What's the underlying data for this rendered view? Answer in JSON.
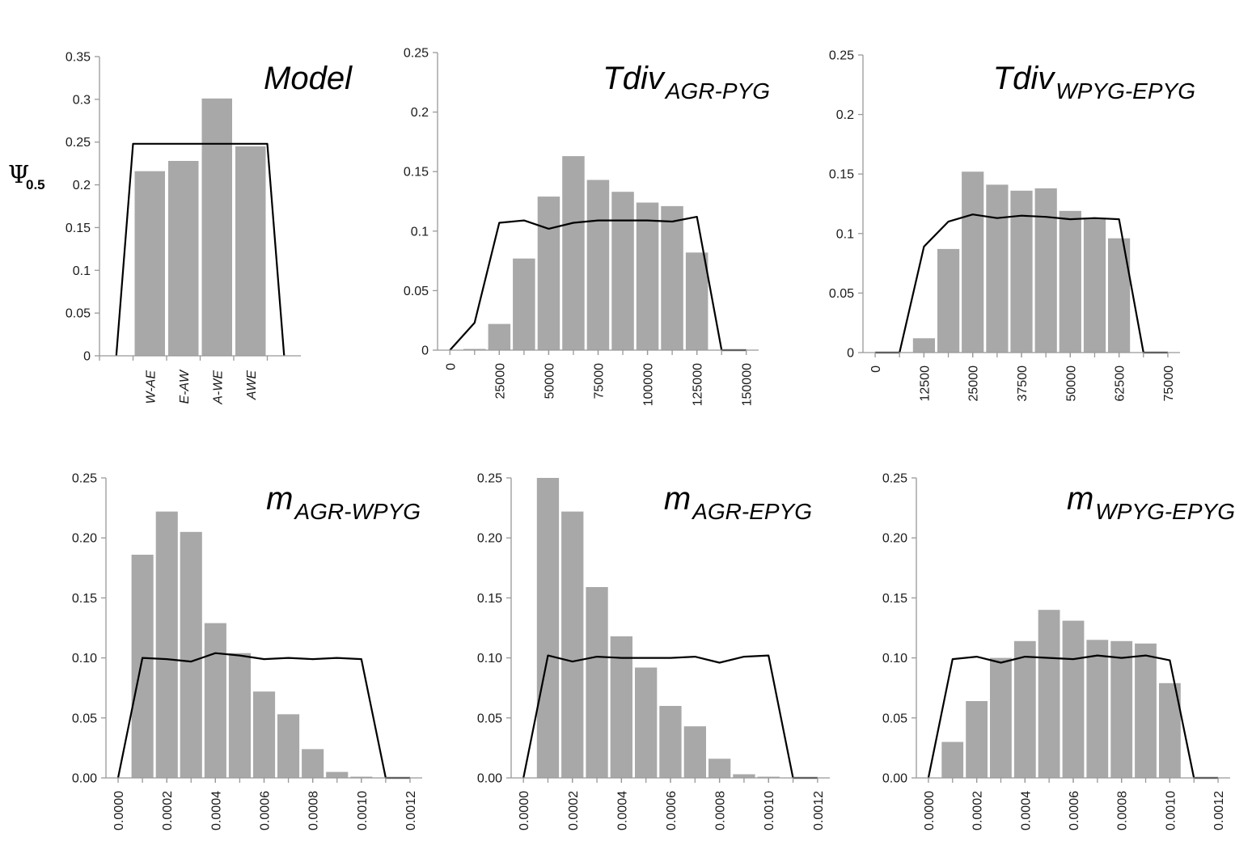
{
  "y_axis_label": {
    "symbol": "Ψ",
    "subscript": "0.5"
  },
  "chart_data": [
    {
      "type": "bar",
      "title": "Model",
      "title_sub": "",
      "categories": [
        "W-AE",
        "E-AW",
        "A-WE",
        "AWE"
      ],
      "bars": [
        0.216,
        0.228,
        0.301,
        0.245
      ],
      "line": {
        "x": [
          -1,
          4
        ],
        "y": [
          0,
          0
        ]
      },
      "line_points": [
        [
          -1,
          0
        ],
        [
          -0.5,
          0.248
        ],
        [
          3.5,
          0.248
        ],
        [
          4,
          0
        ]
      ],
      "ylim": [
        0,
        0.35
      ],
      "yticks": [
        0,
        0.05,
        0.1,
        0.15,
        0.2,
        0.25,
        0.3,
        0.35
      ],
      "ytick_labels": [
        "0",
        "0.05",
        "0.1",
        "0.15",
        "0.2",
        "0.25",
        "0.3",
        "0.35"
      ],
      "xlabel": "",
      "ylabel": "",
      "grid": false
    },
    {
      "type": "bar",
      "title": "Tdiv",
      "title_sub": "AGR-PYG",
      "bin_width": 12500,
      "bar_centers": [
        12500,
        25000,
        37500,
        50000,
        62500,
        75000,
        87500,
        100000,
        112500,
        125000,
        137500,
        150000
      ],
      "bars": [
        0.001,
        0.022,
        0.077,
        0.129,
        0.163,
        0.143,
        0.133,
        0.124,
        0.121,
        0.082,
        0,
        0
      ],
      "line_points": [
        [
          0,
          0
        ],
        [
          12500,
          0.023
        ],
        [
          25000,
          0.107
        ],
        [
          37500,
          0.109
        ],
        [
          50000,
          0.102
        ],
        [
          62500,
          0.107
        ],
        [
          75000,
          0.109
        ],
        [
          87500,
          0.109
        ],
        [
          100000,
          0.109
        ],
        [
          112500,
          0.108
        ],
        [
          125000,
          0.112
        ],
        [
          137500,
          0
        ],
        [
          150000,
          0
        ]
      ],
      "xlim": [
        -6250,
        156250
      ],
      "xticks": [
        0,
        25000,
        50000,
        75000,
        100000,
        125000,
        150000
      ],
      "xtick_labels": [
        "0",
        "25000",
        "50000",
        "75000",
        "100000",
        "125000",
        "150000"
      ],
      "ylim": [
        0,
        0.25
      ],
      "yticks": [
        0,
        0.05,
        0.1,
        0.15,
        0.2,
        0.25
      ],
      "ytick_labels": [
        "0",
        "0.05",
        "0.1",
        "0.15",
        "0.2",
        "0.25"
      ],
      "xlabel": "",
      "ylabel": "",
      "grid": false
    },
    {
      "type": "bar",
      "title": "Tdiv",
      "title_sub": "WPYG-EPYG",
      "bin_width": 6250,
      "bar_centers": [
        12500,
        18750,
        25000,
        31250,
        37500,
        43750,
        50000,
        56250,
        62500
      ],
      "bars": [
        0.012,
        0.087,
        0.152,
        0.141,
        0.136,
        0.138,
        0.119,
        0.113,
        0.096
      ],
      "line_points": [
        [
          0,
          0
        ],
        [
          6250,
          0
        ],
        [
          12500,
          0.089
        ],
        [
          18750,
          0.11
        ],
        [
          25000,
          0.116
        ],
        [
          31250,
          0.113
        ],
        [
          37500,
          0.115
        ],
        [
          43750,
          0.114
        ],
        [
          50000,
          0.112
        ],
        [
          56250,
          0.113
        ],
        [
          62500,
          0.112
        ],
        [
          68750,
          0
        ],
        [
          75000,
          0
        ]
      ],
      "xlim": [
        -3125,
        78125
      ],
      "xticks": [
        0,
        12500,
        25000,
        37500,
        50000,
        62500,
        75000
      ],
      "xtick_labels": [
        "0",
        "12500",
        "25000",
        "37500",
        "50000",
        "62500",
        "75000"
      ],
      "ylim": [
        0,
        0.25
      ],
      "yticks": [
        0,
        0.05,
        0.1,
        0.15,
        0.2,
        0.25
      ],
      "ytick_labels": [
        "0",
        "0.05",
        "0.1",
        "0.15",
        "0.2",
        "0.25"
      ],
      "xlabel": "",
      "ylabel": "",
      "grid": false
    },
    {
      "type": "bar",
      "title": "m",
      "title_sub": "AGR-WPYG",
      "bin_width": 0.0001,
      "bar_centers": [
        0.0001,
        0.0002,
        0.0003,
        0.0004,
        0.0005,
        0.0006,
        0.0007,
        0.0008,
        0.0009,
        0.001,
        0.0011
      ],
      "bars": [
        0.186,
        0.222,
        0.205,
        0.129,
        0.104,
        0.072,
        0.053,
        0.024,
        0.005,
        0.001,
        0
      ],
      "line_points": [
        [
          0,
          0
        ],
        [
          0.0001,
          0.1
        ],
        [
          0.0002,
          0.099
        ],
        [
          0.0003,
          0.097
        ],
        [
          0.0004,
          0.104
        ],
        [
          0.0005,
          0.102
        ],
        [
          0.0006,
          0.099
        ],
        [
          0.0007,
          0.1
        ],
        [
          0.0008,
          0.099
        ],
        [
          0.0009,
          0.1
        ],
        [
          0.001,
          0.099
        ],
        [
          0.0011,
          0
        ],
        [
          0.0012,
          0
        ]
      ],
      "xlim": [
        -5e-05,
        0.00125
      ],
      "xticks": [
        0,
        0.0002,
        0.0004,
        0.0006,
        0.0008,
        0.001,
        0.0012
      ],
      "xtick_labels": [
        "0.0000",
        "0.0002",
        "0.0004",
        "0.0006",
        "0.0008",
        "0.0010",
        "0.0012"
      ],
      "ylim": [
        0,
        0.25
      ],
      "yticks": [
        0,
        0.05,
        0.1,
        0.15,
        0.2,
        0.25
      ],
      "ytick_labels": [
        "0.00",
        "0.05",
        "0.10",
        "0.15",
        "0.20",
        "0.25"
      ],
      "xlabel": "",
      "ylabel": "",
      "grid": false
    },
    {
      "type": "bar",
      "title": "m",
      "title_sub": "AGR-EPYG",
      "bin_width": 0.0001,
      "bar_centers": [
        0.0001,
        0.0002,
        0.0003,
        0.0004,
        0.0005,
        0.0006,
        0.0007,
        0.0008,
        0.0009,
        0.001,
        0.0011
      ],
      "bars": [
        0.25,
        0.222,
        0.159,
        0.118,
        0.092,
        0.06,
        0.043,
        0.016,
        0.003,
        0.001,
        0
      ],
      "line_points": [
        [
          0,
          0
        ],
        [
          0.0001,
          0.102
        ],
        [
          0.0002,
          0.097
        ],
        [
          0.0003,
          0.101
        ],
        [
          0.0004,
          0.1
        ],
        [
          0.0005,
          0.1
        ],
        [
          0.0006,
          0.1
        ],
        [
          0.0007,
          0.101
        ],
        [
          0.0008,
          0.096
        ],
        [
          0.0009,
          0.101
        ],
        [
          0.001,
          0.102
        ],
        [
          0.0011,
          0
        ],
        [
          0.0012,
          0
        ]
      ],
      "xlim": [
        -5e-05,
        0.00125
      ],
      "xticks": [
        0,
        0.0002,
        0.0004,
        0.0006,
        0.0008,
        0.001,
        0.0012
      ],
      "xtick_labels": [
        "0.0000",
        "0.0002",
        "0.0004",
        "0.0006",
        "0.0008",
        "0.0010",
        "0.0012"
      ],
      "ylim": [
        0,
        0.25
      ],
      "yticks": [
        0,
        0.05,
        0.1,
        0.15,
        0.2,
        0.25
      ],
      "ytick_labels": [
        "0.00",
        "0.05",
        "0.10",
        "0.15",
        "0.20",
        "0.25"
      ],
      "xlabel": "",
      "ylabel": "",
      "grid": false
    },
    {
      "type": "bar",
      "title": "m",
      "title_sub": "WPYG-EPYG",
      "bin_width": 0.0001,
      "bar_centers": [
        0.0001,
        0.0002,
        0.0003,
        0.0004,
        0.0005,
        0.0006,
        0.0007,
        0.0008,
        0.0009,
        0.001,
        0.0011
      ],
      "bars": [
        0.03,
        0.064,
        0.1,
        0.114,
        0.14,
        0.131,
        0.115,
        0.114,
        0.112,
        0.079,
        0
      ],
      "line_points": [
        [
          0,
          0
        ],
        [
          0.0001,
          0.099
        ],
        [
          0.0002,
          0.101
        ],
        [
          0.0003,
          0.096
        ],
        [
          0.0004,
          0.101
        ],
        [
          0.0005,
          0.1
        ],
        [
          0.0006,
          0.099
        ],
        [
          0.0007,
          0.102
        ],
        [
          0.0008,
          0.1
        ],
        [
          0.0009,
          0.102
        ],
        [
          0.001,
          0.098
        ],
        [
          0.0011,
          0
        ],
        [
          0.0012,
          0
        ]
      ],
      "xlim": [
        -5e-05,
        0.00125
      ],
      "xticks": [
        0,
        0.0002,
        0.0004,
        0.0006,
        0.0008,
        0.001,
        0.0012
      ],
      "xtick_labels": [
        "0.0000",
        "0.0002",
        "0.0004",
        "0.0006",
        "0.0008",
        "0.0010",
        "0.0012"
      ],
      "ylim": [
        0,
        0.25
      ],
      "yticks": [
        0,
        0.05,
        0.1,
        0.15,
        0.2,
        0.25
      ],
      "ytick_labels": [
        "0.00",
        "0.05",
        "0.10",
        "0.15",
        "0.20",
        "0.25"
      ],
      "xlabel": "",
      "ylabel": "",
      "grid": false
    }
  ],
  "colors": {
    "bar": "#a8a8a8",
    "line": "#000000",
    "axis": "#999999"
  }
}
